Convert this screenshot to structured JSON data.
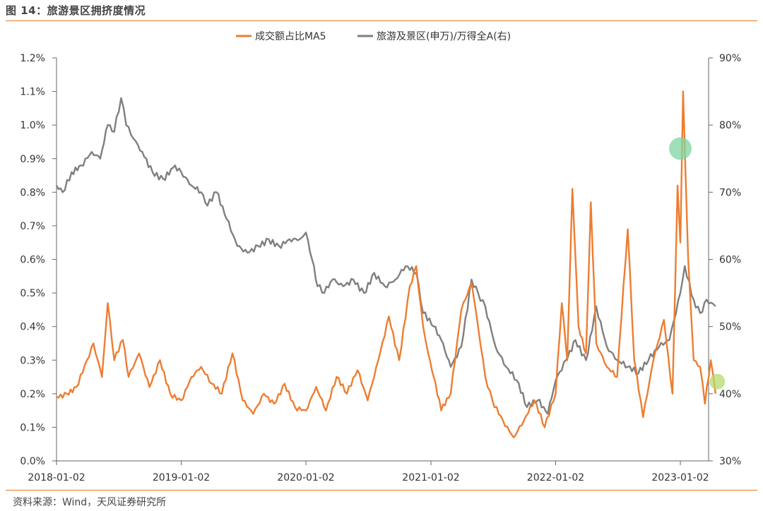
{
  "figure": {
    "title": "图 14：旅游景区拥挤度情况",
    "source": "资料来源：Wind，天风证券研究所"
  },
  "chart_data": {
    "type": "line",
    "x_ticks": [
      "2018-01-02",
      "2019-01-02",
      "2020-01-02",
      "2021-01-02",
      "2022-01-02",
      "2023-01-02"
    ],
    "y_left": {
      "ticks": [
        "0.0%",
        "0.1%",
        "0.2%",
        "0.3%",
        "0.4%",
        "0.5%",
        "0.6%",
        "0.7%",
        "0.8%",
        "0.9%",
        "1.0%",
        "1.1%",
        "1.2%"
      ],
      "range": [
        0,
        1.2
      ],
      "unit": "%"
    },
    "y_right": {
      "ticks": [
        "30%",
        "40%",
        "50%",
        "60%",
        "70%",
        "80%",
        "90%"
      ],
      "range": [
        30,
        90
      ],
      "unit": "%"
    },
    "legend_position": "top-center",
    "series": [
      {
        "name": "成交额占比MA5",
        "axis": "left",
        "color": "#ED7D31",
        "points": [
          [
            "2018-01-02",
            0.19
          ],
          [
            "2018-02-01",
            0.2
          ],
          [
            "2018-03-01",
            0.22
          ],
          [
            "2018-04-01",
            0.3
          ],
          [
            "2018-04-20",
            0.35
          ],
          [
            "2018-05-15",
            0.25
          ],
          [
            "2018-06-01",
            0.47
          ],
          [
            "2018-06-20",
            0.3
          ],
          [
            "2018-07-15",
            0.36
          ],
          [
            "2018-08-01",
            0.25
          ],
          [
            "2018-09-01",
            0.32
          ],
          [
            "2018-10-01",
            0.22
          ],
          [
            "2018-11-01",
            0.3
          ],
          [
            "2018-12-01",
            0.2
          ],
          [
            "2019-01-02",
            0.18
          ],
          [
            "2019-02-01",
            0.25
          ],
          [
            "2019-03-01",
            0.28
          ],
          [
            "2019-04-01",
            0.23
          ],
          [
            "2019-05-01",
            0.2
          ],
          [
            "2019-06-01",
            0.32
          ],
          [
            "2019-07-01",
            0.18
          ],
          [
            "2019-08-01",
            0.14
          ],
          [
            "2019-09-01",
            0.2
          ],
          [
            "2019-10-01",
            0.17
          ],
          [
            "2019-11-01",
            0.23
          ],
          [
            "2019-12-01",
            0.16
          ],
          [
            "2020-01-02",
            0.15
          ],
          [
            "2020-02-01",
            0.22
          ],
          [
            "2020-03-01",
            0.15
          ],
          [
            "2020-04-01",
            0.25
          ],
          [
            "2020-05-01",
            0.2
          ],
          [
            "2020-06-01",
            0.27
          ],
          [
            "2020-07-01",
            0.18
          ],
          [
            "2020-08-01",
            0.3
          ],
          [
            "2020-09-01",
            0.43
          ],
          [
            "2020-10-01",
            0.3
          ],
          [
            "2020-11-01",
            0.52
          ],
          [
            "2020-11-20",
            0.58
          ],
          [
            "2020-12-10",
            0.4
          ],
          [
            "2020-12-25",
            0.32
          ],
          [
            "2021-01-10",
            0.25
          ],
          [
            "2021-02-01",
            0.15
          ],
          [
            "2021-03-01",
            0.2
          ],
          [
            "2021-04-01",
            0.45
          ],
          [
            "2021-05-01",
            0.53
          ],
          [
            "2021-05-20",
            0.4
          ],
          [
            "2021-06-10",
            0.25
          ],
          [
            "2021-07-01",
            0.18
          ],
          [
            "2021-08-01",
            0.12
          ],
          [
            "2021-09-01",
            0.07
          ],
          [
            "2021-10-01",
            0.12
          ],
          [
            "2021-11-01",
            0.18
          ],
          [
            "2021-12-01",
            0.1
          ],
          [
            "2022-01-02",
            0.2
          ],
          [
            "2022-01-20",
            0.47
          ],
          [
            "2022-02-05",
            0.3
          ],
          [
            "2022-02-20",
            0.81
          ],
          [
            "2022-03-10",
            0.4
          ],
          [
            "2022-04-01",
            0.32
          ],
          [
            "2022-04-15",
            0.77
          ],
          [
            "2022-05-01",
            0.35
          ],
          [
            "2022-06-01",
            0.28
          ],
          [
            "2022-07-01",
            0.25
          ],
          [
            "2022-08-01",
            0.69
          ],
          [
            "2022-08-20",
            0.3
          ],
          [
            "2022-09-15",
            0.13
          ],
          [
            "2022-10-15",
            0.3
          ],
          [
            "2022-11-15",
            0.42
          ],
          [
            "2022-12-10",
            0.2
          ],
          [
            "2022-12-25",
            0.82
          ],
          [
            "2023-01-02",
            0.65
          ],
          [
            "2023-01-10",
            1.1
          ],
          [
            "2023-01-25",
            0.6
          ],
          [
            "2023-02-10",
            0.3
          ],
          [
            "2023-03-01",
            0.28
          ],
          [
            "2023-03-15",
            0.17
          ],
          [
            "2023-04-01",
            0.3
          ],
          [
            "2023-04-15",
            0.2
          ]
        ]
      },
      {
        "name": "旅游及景区(申万)/万得全A(右)",
        "axis": "right",
        "color": "#7F7F7F",
        "points": [
          [
            "2018-01-02",
            71
          ],
          [
            "2018-01-20",
            70
          ],
          [
            "2018-02-15",
            73
          ],
          [
            "2018-03-15",
            74
          ],
          [
            "2018-04-15",
            76
          ],
          [
            "2018-05-10",
            75
          ],
          [
            "2018-06-01",
            80
          ],
          [
            "2018-06-20",
            79
          ],
          [
            "2018-07-10",
            84
          ],
          [
            "2018-07-25",
            80
          ],
          [
            "2018-08-15",
            78
          ],
          [
            "2018-09-10",
            76
          ],
          [
            "2018-10-10",
            73
          ],
          [
            "2018-11-10",
            72
          ],
          [
            "2018-12-15",
            74
          ],
          [
            "2019-01-02",
            73
          ],
          [
            "2019-02-01",
            71
          ],
          [
            "2019-03-01",
            70
          ],
          [
            "2019-03-20",
            68
          ],
          [
            "2019-04-15",
            70
          ],
          [
            "2019-05-15",
            66
          ],
          [
            "2019-06-15",
            62
          ],
          [
            "2019-07-15",
            61
          ],
          [
            "2019-08-15",
            62
          ],
          [
            "2019-09-15",
            63
          ],
          [
            "2019-10-15",
            62
          ],
          [
            "2019-11-15",
            63
          ],
          [
            "2019-12-15",
            63
          ],
          [
            "2020-01-02",
            64
          ],
          [
            "2020-01-20",
            60
          ],
          [
            "2020-02-05",
            56
          ],
          [
            "2020-02-25",
            55
          ],
          [
            "2020-03-20",
            57
          ],
          [
            "2020-04-20",
            56
          ],
          [
            "2020-05-20",
            57
          ],
          [
            "2020-06-20",
            55
          ],
          [
            "2020-07-20",
            58
          ],
          [
            "2020-08-20",
            56
          ],
          [
            "2020-09-20",
            57
          ],
          [
            "2020-10-20",
            59
          ],
          [
            "2020-11-20",
            58
          ],
          [
            "2020-12-10",
            52
          ],
          [
            "2021-01-10",
            50
          ],
          [
            "2021-02-01",
            48
          ],
          [
            "2021-03-01",
            44
          ],
          [
            "2021-04-01",
            47
          ],
          [
            "2021-05-01",
            57
          ],
          [
            "2021-05-20",
            55
          ],
          [
            "2021-06-10",
            53
          ],
          [
            "2021-07-10",
            47
          ],
          [
            "2021-08-10",
            44
          ],
          [
            "2021-09-10",
            42
          ],
          [
            "2021-10-10",
            38
          ],
          [
            "2021-11-10",
            39
          ],
          [
            "2021-12-10",
            37
          ],
          [
            "2022-01-02",
            42
          ],
          [
            "2022-02-01",
            45
          ],
          [
            "2022-03-01",
            48
          ],
          [
            "2022-04-01",
            45
          ],
          [
            "2022-05-01",
            53
          ],
          [
            "2022-06-01",
            47
          ],
          [
            "2022-07-01",
            45
          ],
          [
            "2022-08-01",
            44
          ],
          [
            "2022-09-01",
            43
          ],
          [
            "2022-10-01",
            45
          ],
          [
            "2022-11-01",
            47
          ],
          [
            "2022-12-01",
            48
          ],
          [
            "2023-01-02",
            55
          ],
          [
            "2023-01-15",
            59
          ],
          [
            "2023-02-10",
            54
          ],
          [
            "2023-03-01",
            52
          ],
          [
            "2023-03-20",
            54
          ],
          [
            "2023-04-15",
            53
          ]
        ]
      }
    ],
    "highlights": [
      {
        "series": "成交额占比MA5",
        "date": "2023-01-02",
        "y_right": 76.5,
        "color": "#7ED6A0"
      },
      {
        "series": "成交额占比MA5",
        "date": "2023-04-20",
        "y_right": 41.8,
        "color": "#B6DA6E"
      }
    ]
  }
}
